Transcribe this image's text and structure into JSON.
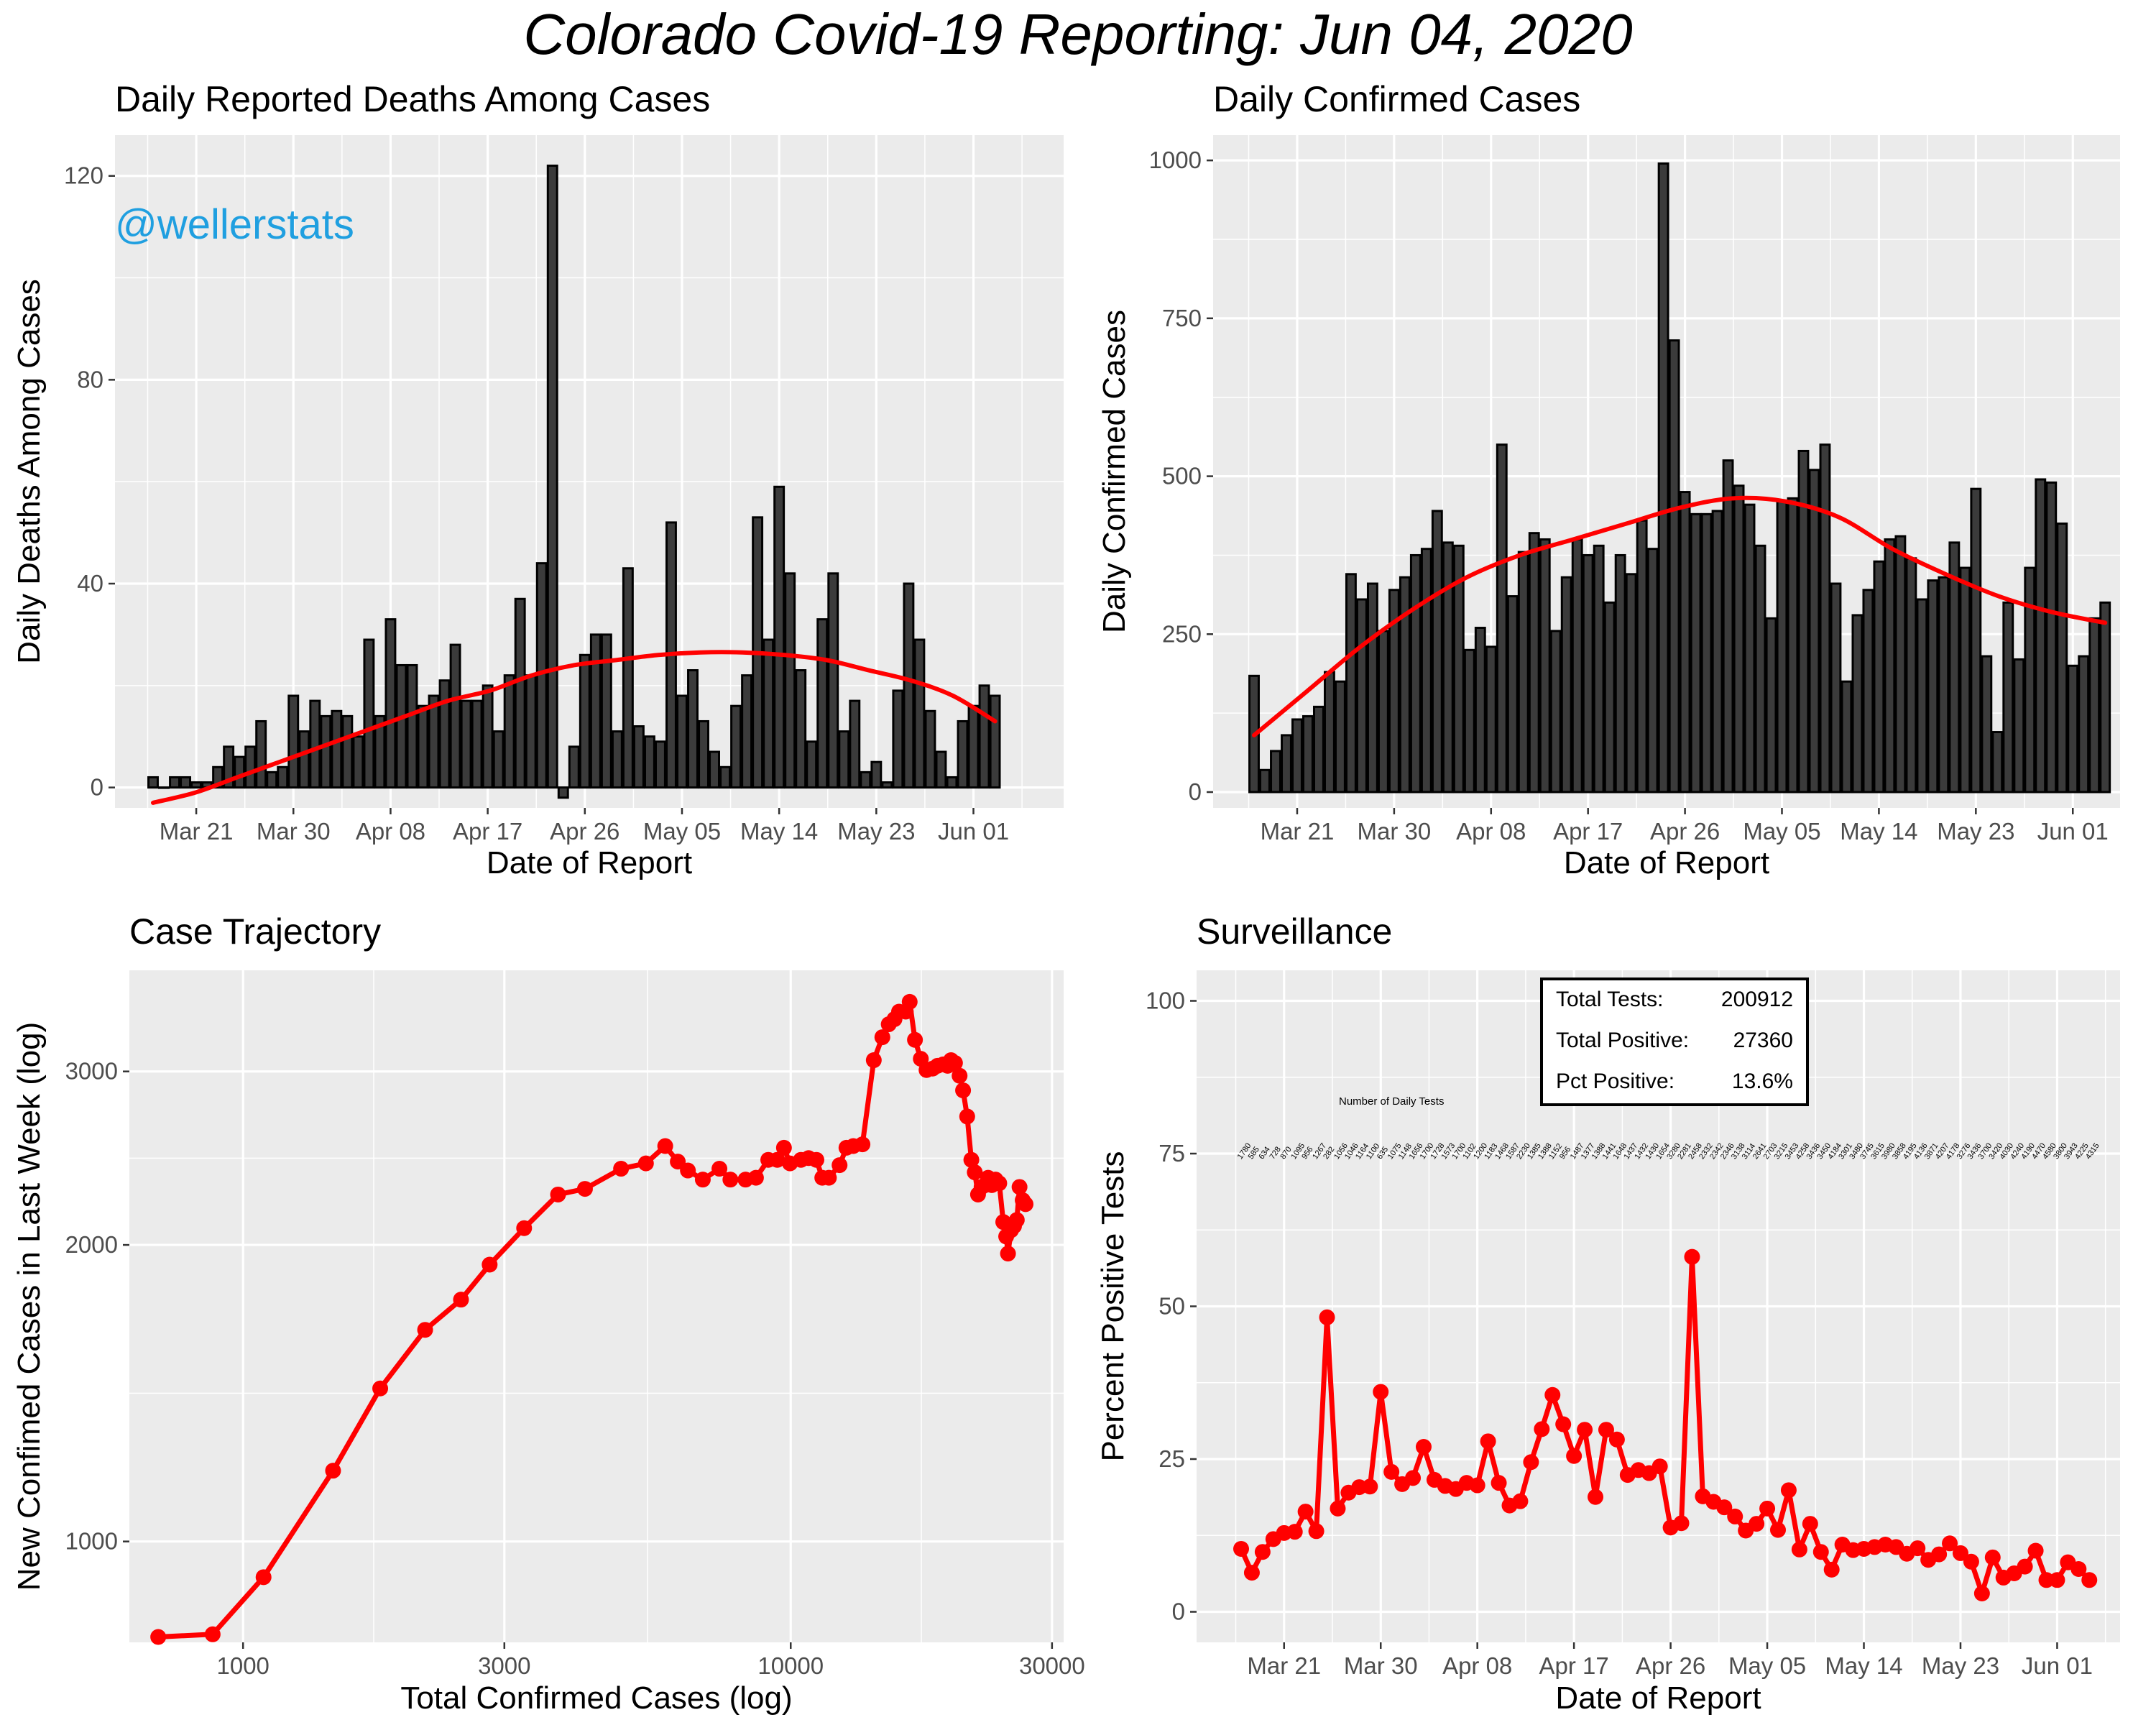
{
  "title": "Colorado Covid-19 Reporting:  Jun 04, 2020",
  "watermark": "@wellerstats",
  "chart_data": [
    {
      "id": "deaths",
      "type": "bar",
      "title": "Daily Reported Deaths Among Cases",
      "xlabel": "Date of Report",
      "ylabel": "Daily Deaths Among Cases",
      "x_start": "Mar 17",
      "x_ticks": [
        "Mar 21",
        "Mar 30",
        "Apr 08",
        "Apr 17",
        "Apr 26",
        "May 05",
        "May 14",
        "May 23",
        "Jun 01"
      ],
      "y_ticks": [
        "0",
        "40",
        "80",
        "120"
      ],
      "ylim": [
        -4,
        128
      ],
      "values": [
        2,
        0,
        2,
        2,
        1,
        1,
        4,
        8,
        6,
        8,
        13,
        3,
        4,
        18,
        11,
        17,
        14,
        15,
        14,
        10,
        29,
        14,
        33,
        24,
        24,
        16,
        18,
        21,
        28,
        17,
        17,
        20,
        11,
        22,
        37,
        22,
        44,
        122,
        -2,
        8,
        26,
        30,
        30,
        11,
        43,
        12,
        10,
        9,
        52,
        18,
        23,
        13,
        7,
        4,
        16,
        22,
        53,
        29,
        59,
        42,
        23,
        9,
        33,
        42,
        11,
        17,
        3,
        5,
        1,
        19,
        40,
        29,
        15,
        7,
        2,
        13,
        16,
        20,
        18
      ],
      "trend": [
        -3,
        -1,
        2,
        5,
        8,
        11,
        14,
        17,
        19,
        22,
        24,
        25,
        26,
        26.5,
        26.5,
        26,
        25,
        23,
        21,
        18,
        13
      ]
    },
    {
      "id": "cases",
      "type": "bar",
      "title": "Daily Confirmed Cases",
      "xlabel": "Date of Report",
      "ylabel": "Daily Confirmed Cases",
      "x_start": "Mar 17",
      "x_ticks": [
        "Mar 21",
        "Mar 30",
        "Apr 08",
        "Apr 17",
        "Apr 26",
        "May 05",
        "May 14",
        "May 23",
        "Jun 01"
      ],
      "y_ticks": [
        "0",
        "250",
        "500",
        "750",
        "1000"
      ],
      "ylim": [
        -25,
        1040
      ],
      "values": [
        184,
        35,
        65,
        90,
        115,
        120,
        135,
        190,
        175,
        345,
        305,
        330,
        255,
        320,
        340,
        375,
        385,
        445,
        395,
        390,
        225,
        260,
        230,
        550,
        310,
        380,
        410,
        400,
        255,
        340,
        400,
        375,
        390,
        300,
        375,
        345,
        430,
        385,
        995,
        715,
        475,
        440,
        440,
        445,
        525,
        485,
        455,
        390,
        275,
        460,
        465,
        540,
        510,
        550,
        330,
        175,
        280,
        320,
        365,
        400,
        405,
        370,
        305,
        335,
        340,
        395,
        355,
        480,
        215,
        95,
        300,
        210,
        355,
        495,
        490,
        425,
        200,
        215,
        275,
        300
      ],
      "trend": [
        90,
        160,
        230,
        290,
        340,
        375,
        400,
        425,
        450,
        465,
        460,
        435,
        385,
        345,
        310,
        285,
        268
      ]
    },
    {
      "id": "trajectory",
      "type": "line",
      "title": "Case Trajectory",
      "xlabel": "Total Confirmed Cases (log)",
      "ylabel": "New Confimed Cases in Last Week (log)",
      "x_scale": "log",
      "y_scale": "log",
      "x_ticks": [
        "1000",
        "3000",
        "10000",
        "30000"
      ],
      "y_ticks": [
        "1000",
        "2000",
        "3000"
      ],
      "xlim": [
        620,
        31500
      ],
      "ylim": [
        790,
        3800
      ],
      "points": [
        [
          700,
          800
        ],
        [
          880,
          805
        ],
        [
          1090,
          920
        ],
        [
          1460,
          1180
        ],
        [
          1780,
          1430
        ],
        [
          2150,
          1640
        ],
        [
          2500,
          1760
        ],
        [
          2820,
          1910
        ],
        [
          3260,
          2080
        ],
        [
          3760,
          2250
        ],
        [
          4210,
          2280
        ],
        [
          4900,
          2390
        ],
        [
          5440,
          2420
        ],
        [
          5900,
          2520
        ],
        [
          6220,
          2430
        ],
        [
          6490,
          2380
        ],
        [
          6910,
          2330
        ],
        [
          7410,
          2390
        ],
        [
          7760,
          2330
        ],
        [
          8270,
          2330
        ],
        [
          8640,
          2340
        ],
        [
          9100,
          2440
        ],
        [
          9450,
          2440
        ],
        [
          9720,
          2510
        ],
        [
          9970,
          2420
        ],
        [
          10440,
          2440
        ],
        [
          10780,
          2450
        ],
        [
          11140,
          2440
        ],
        [
          11420,
          2340
        ],
        [
          11740,
          2340
        ],
        [
          12280,
          2410
        ],
        [
          12640,
          2510
        ],
        [
          13010,
          2520
        ],
        [
          13520,
          2530
        ],
        [
          14180,
          3080
        ],
        [
          14700,
          3250
        ],
        [
          15100,
          3350
        ],
        [
          15470,
          3390
        ],
        [
          15770,
          3450
        ],
        [
          16220,
          3450
        ],
        [
          16490,
          3530
        ],
        [
          16860,
          3230
        ],
        [
          17280,
          3090
        ],
        [
          17700,
          3010
        ],
        [
          18160,
          3020
        ],
        [
          18540,
          3040
        ],
        [
          18980,
          3050
        ],
        [
          19340,
          3040
        ],
        [
          19620,
          3080
        ],
        [
          19950,
          3060
        ],
        [
          20340,
          2970
        ],
        [
          20640,
          2870
        ],
        [
          21000,
          2700
        ],
        [
          21370,
          2440
        ],
        [
          21680,
          2370
        ],
        [
          21980,
          2250
        ],
        [
          22310,
          2290
        ],
        [
          22650,
          2300
        ],
        [
          22930,
          2340
        ],
        [
          23290,
          2300
        ],
        [
          23660,
          2330
        ],
        [
          24030,
          2310
        ],
        [
          24440,
          2110
        ],
        [
          24740,
          2040
        ],
        [
          24930,
          1960
        ],
        [
          25250,
          2070
        ],
        [
          25570,
          2090
        ],
        [
          25870,
          2120
        ],
        [
          26170,
          2290
        ],
        [
          26520,
          2220
        ],
        [
          26840,
          2200
        ]
      ]
    },
    {
      "id": "surveillance",
      "type": "line",
      "title": "Surveillance",
      "xlabel": "Date of Report",
      "ylabel": "Percent Positive Tests",
      "x_start": "Mar 17",
      "x_ticks": [
        "Mar 21",
        "Mar 30",
        "Apr 08",
        "Apr 17",
        "Apr 26",
        "May 05",
        "May 14",
        "May 23",
        "Jun 01"
      ],
      "y_ticks": [
        "0",
        "25",
        "50",
        "75",
        "100"
      ],
      "ylim": [
        -5,
        105
      ],
      "values": [
        10.3,
        6.4,
        9.8,
        11.9,
        12.9,
        13.1,
        16.4,
        13.2,
        48.2,
        16.9,
        19.5,
        20.4,
        20.5,
        36.0,
        22.9,
        20.9,
        21.9,
        27.0,
        21.6,
        20.6,
        20.1,
        21.1,
        20.7,
        27.9,
        21.1,
        17.4,
        18.1,
        24.5,
        29.9,
        35.5,
        30.7,
        25.5,
        29.8,
        18.8,
        29.8,
        28.2,
        22.4,
        23.2,
        22.7,
        23.8,
        13.8,
        14.5,
        58.1,
        18.9,
        18.0,
        17.1,
        15.6,
        13.3,
        14.4,
        16.9,
        13.4,
        19.9,
        10.2,
        14.4,
        9.8,
        6.9,
        11.0,
        10.1,
        10.3,
        10.6,
        11.0,
        10.6,
        9.5,
        10.4,
        8.5,
        9.4,
        11.2,
        9.6,
        8.2,
        3.0,
        8.9,
        5.6,
        6.3,
        7.4,
        10.0,
        5.2,
        5.2,
        8.1,
        7.0,
        5.2
      ],
      "daily_tests": [
        "1780",
        "585",
        "634",
        "728",
        "870",
        "1095",
        "956",
        "1267",
        "282",
        "1056",
        "1046",
        "1164",
        "1100",
        "635",
        "1075",
        "1148",
        "1656",
        "1700",
        "1728",
        "1573",
        "1700",
        "1102",
        "1200",
        "1183",
        "1468",
        "1587",
        "2230",
        "1385",
        "1388",
        "1152",
        "956",
        "1487",
        "1377",
        "1388",
        "1441",
        "1648",
        "1437",
        "1432",
        "1430",
        "1654",
        "3280",
        "2281",
        "2458",
        "2332",
        "2342",
        "2346",
        "3138",
        "3114",
        "2641",
        "2703",
        "3215",
        "3453",
        "4258",
        "3436",
        "3450",
        "4184",
        "3301",
        "3480",
        "3745",
        "3615",
        "3980",
        "3858",
        "4195",
        "4136",
        "3871",
        "4207",
        "4178",
        "3276",
        "3436",
        "3700",
        "3420",
        "4030",
        "4240",
        "4190",
        "4470",
        "4580",
        "3800",
        "3943",
        "4225",
        "4315"
      ],
      "daily_tests_title": "Number of Daily Tests",
      "legend": {
        "rows": [
          {
            "label": "Total Tests:",
            "value": "200912"
          },
          {
            "label": "Total Positive:",
            "value": "27360"
          },
          {
            "label": "Pct Positive:",
            "value": "13.6%"
          }
        ]
      }
    }
  ],
  "colors": {
    "panel": "#ebebeb",
    "grid": "#ffffff",
    "bar_fill": "#3b3b3b",
    "bar_stroke": "#000000",
    "accent": "#ff0000"
  }
}
